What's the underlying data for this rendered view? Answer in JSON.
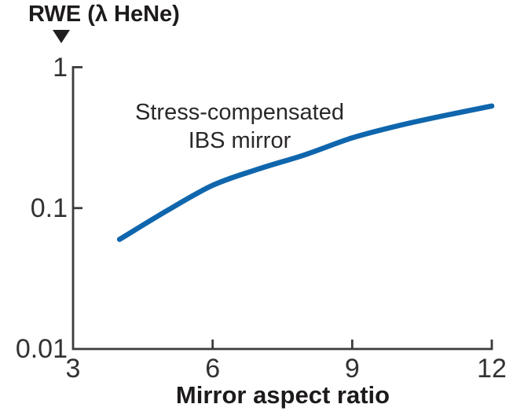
{
  "chart_data": {
    "type": "line",
    "title": "RWE (λ HeNe)",
    "xlabel": "Mirror aspect ratio",
    "ylabel": "RWE (λ HeNe)",
    "annotation": {
      "line1": "Stress-compensated",
      "line2": "IBS mirror"
    },
    "x_scale": "linear",
    "y_scale": "log",
    "xlim": [
      3,
      12
    ],
    "ylim": [
      0.01,
      1
    ],
    "x_ticks": [
      "3",
      "6",
      "9",
      "12"
    ],
    "y_ticks": [
      "1",
      "0.1",
      "0.01"
    ],
    "grid": false,
    "legend_position": "none",
    "marker_glyph": "down-triangle",
    "series": [
      {
        "name": "Stress-compensated IBS mirror",
        "color": "#0f66ad",
        "x": [
          4,
          5,
          6,
          7,
          8,
          9,
          10,
          11,
          12
        ],
        "y": [
          0.06,
          0.095,
          0.145,
          0.19,
          0.24,
          0.315,
          0.385,
          0.455,
          0.53
        ]
      }
    ]
  },
  "colors": {
    "line": "#0f66ad",
    "axis": "#3d3b3c",
    "text": "#1d1a1b",
    "background": "#ffffff"
  }
}
